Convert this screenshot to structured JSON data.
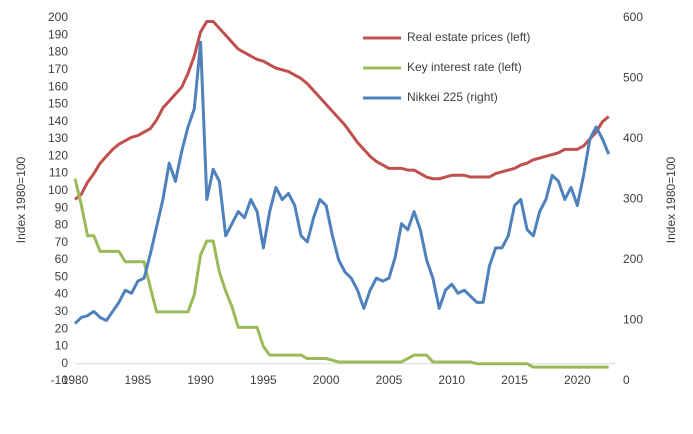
{
  "chart_data": {
    "type": "line",
    "ylabel": "Index 1980=100",
    "y2label": "Index 1980=100",
    "xlim": [
      1980,
      2023
    ],
    "xticks": [
      1980,
      1985,
      1990,
      1995,
      2000,
      2005,
      2010,
      2015,
      2020
    ],
    "ylim": [
      -10,
      200
    ],
    "yticks": [
      -10,
      0,
      10,
      20,
      30,
      40,
      50,
      60,
      70,
      80,
      90,
      100,
      110,
      120,
      130,
      140,
      150,
      160,
      170,
      180,
      190,
      200
    ],
    "y2lim": [
      0,
      600
    ],
    "y2ticks": [
      0,
      100,
      200,
      300,
      400,
      500,
      600
    ],
    "legend": "upper right",
    "grid": false,
    "x": [
      1980,
      1980.5,
      1981,
      1981.5,
      1982,
      1982.5,
      1983,
      1983.5,
      1984,
      1984.5,
      1985,
      1985.5,
      1986,
      1986.5,
      1987,
      1987.5,
      1988,
      1988.5,
      1989,
      1989.5,
      1990,
      1990.5,
      1991,
      1991.5,
      1992,
      1992.5,
      1993,
      1993.5,
      1994,
      1994.5,
      1995,
      1995.5,
      1996,
      1996.5,
      1997,
      1997.5,
      1998,
      1998.5,
      1999,
      1999.5,
      2000,
      2000.5,
      2001,
      2001.5,
      2002,
      2002.5,
      2003,
      2003.5,
      2004,
      2004.5,
      2005,
      2005.5,
      2006,
      2006.5,
      2007,
      2007.5,
      2008,
      2008.5,
      2009,
      2009.5,
      2010,
      2010.5,
      2011,
      2011.5,
      2012,
      2012.5,
      2013,
      2013.5,
      2014,
      2014.5,
      2015,
      2015.5,
      2016,
      2016.5,
      2017,
      2017.5,
      2018,
      2018.5,
      2019,
      2019.5,
      2020,
      2020.5,
      2021,
      2021.5,
      2022,
      2022.5
    ],
    "series": [
      {
        "name": "Real estate prices (left)",
        "color": "#c0504d",
        "values": [
          95,
          98,
          105,
          110,
          116,
          120,
          124,
          127,
          129,
          131,
          132,
          134,
          136,
          141,
          148,
          152,
          156,
          160,
          168,
          178,
          192,
          198,
          198,
          194,
          190,
          186,
          182,
          180,
          178,
          176,
          175,
          173,
          171,
          170,
          169,
          167,
          165,
          162,
          158,
          154,
          150,
          146,
          142,
          138,
          133,
          128,
          124,
          120,
          117,
          115,
          113,
          113,
          113,
          112,
          112,
          110,
          108,
          107,
          107,
          108,
          109,
          109,
          109,
          108,
          108,
          108,
          108,
          110,
          111,
          112,
          113,
          115,
          116,
          118,
          119,
          120,
          121,
          122,
          124,
          124,
          124,
          126,
          130,
          134,
          140,
          143
        ]
      },
      {
        "name": "Key interest rate (left)",
        "color": "#9bbb59",
        "values": [
          107,
          92,
          74,
          74,
          65,
          65,
          65,
          65,
          59,
          59,
          59,
          59,
          44,
          30,
          30,
          30,
          30,
          30,
          30,
          40,
          63,
          71,
          71,
          53,
          42,
          33,
          21,
          21,
          21,
          21,
          10,
          5,
          5,
          5,
          5,
          5,
          5,
          3,
          3,
          3,
          3,
          2,
          1,
          1,
          1,
          1,
          1,
          1,
          1,
          1,
          1,
          1,
          1,
          3,
          5,
          5,
          5,
          1,
          1,
          1,
          1,
          1,
          1,
          1,
          0,
          0,
          0,
          0,
          0,
          0,
          0,
          0,
          0,
          -2,
          -2,
          -2,
          -2,
          -2,
          -2,
          -2,
          -2,
          -2,
          -2,
          -2,
          -2,
          -2
        ]
      },
      {
        "name": "Nikkei 225 (right)",
        "color": "#4f81bd",
        "axis": "y2",
        "values": [
          95,
          105,
          108,
          115,
          105,
          100,
          115,
          130,
          150,
          145,
          165,
          170,
          210,
          255,
          300,
          360,
          330,
          380,
          420,
          450,
          560,
          300,
          350,
          330,
          240,
          260,
          280,
          270,
          300,
          280,
          220,
          280,
          320,
          300,
          310,
          290,
          240,
          230,
          270,
          300,
          290,
          240,
          200,
          180,
          170,
          150,
          120,
          150,
          170,
          165,
          170,
          205,
          260,
          250,
          280,
          250,
          200,
          170,
          120,
          150,
          160,
          145,
          150,
          140,
          130,
          130,
          190,
          220,
          220,
          240,
          290,
          300,
          250,
          240,
          280,
          300,
          340,
          330,
          300,
          320,
          290,
          340,
          400,
          420,
          400,
          375
        ]
      }
    ]
  }
}
